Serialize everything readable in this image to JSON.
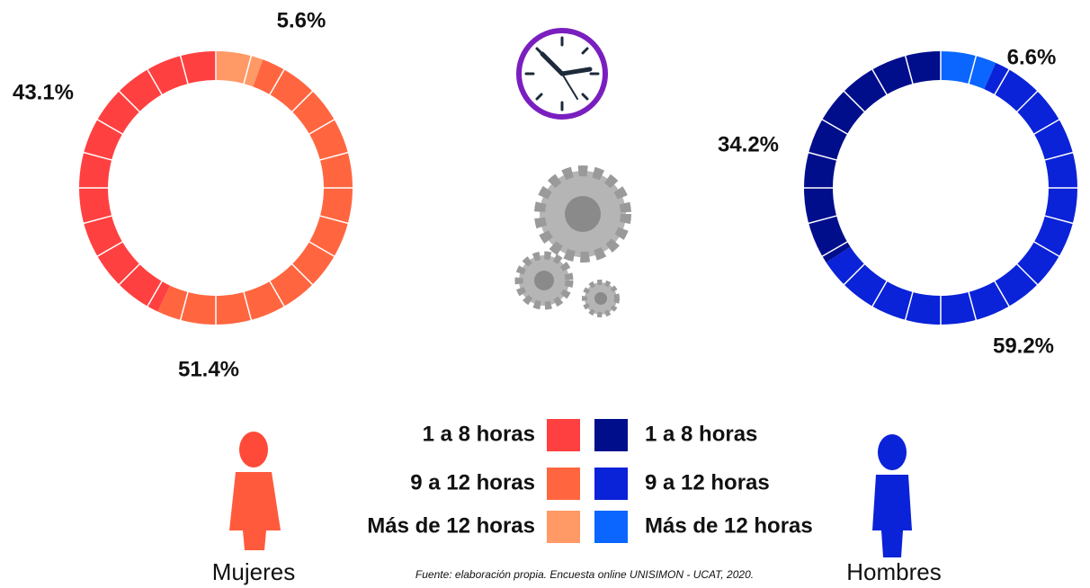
{
  "chart_data": [
    {
      "type": "pie",
      "title": "Mujeres",
      "categories": [
        "1 a 8 horas",
        "9 a 12 horas",
        "Más de 12 horas"
      ],
      "values": [
        43.1,
        51.4,
        5.6
      ],
      "value_labels": [
        "43.1%",
        "51.4%",
        "5.6%"
      ],
      "colors": [
        "#ff4040",
        "#ff6640",
        "#ff9966"
      ]
    },
    {
      "type": "pie",
      "title": "Hombres",
      "categories": [
        "1 a 8 horas",
        "9 a 12 horas",
        "Más de 12 horas"
      ],
      "values": [
        34.2,
        59.2,
        6.6
      ],
      "value_labels": [
        "34.2%",
        "59.2%",
        "6.6%"
      ],
      "colors": [
        "#000e8c",
        "#0a22d8",
        "#0a66ff"
      ]
    }
  ],
  "source": "Fuente: elaboración propia. Encuesta online UNISIMON - UCAT, 2020."
}
